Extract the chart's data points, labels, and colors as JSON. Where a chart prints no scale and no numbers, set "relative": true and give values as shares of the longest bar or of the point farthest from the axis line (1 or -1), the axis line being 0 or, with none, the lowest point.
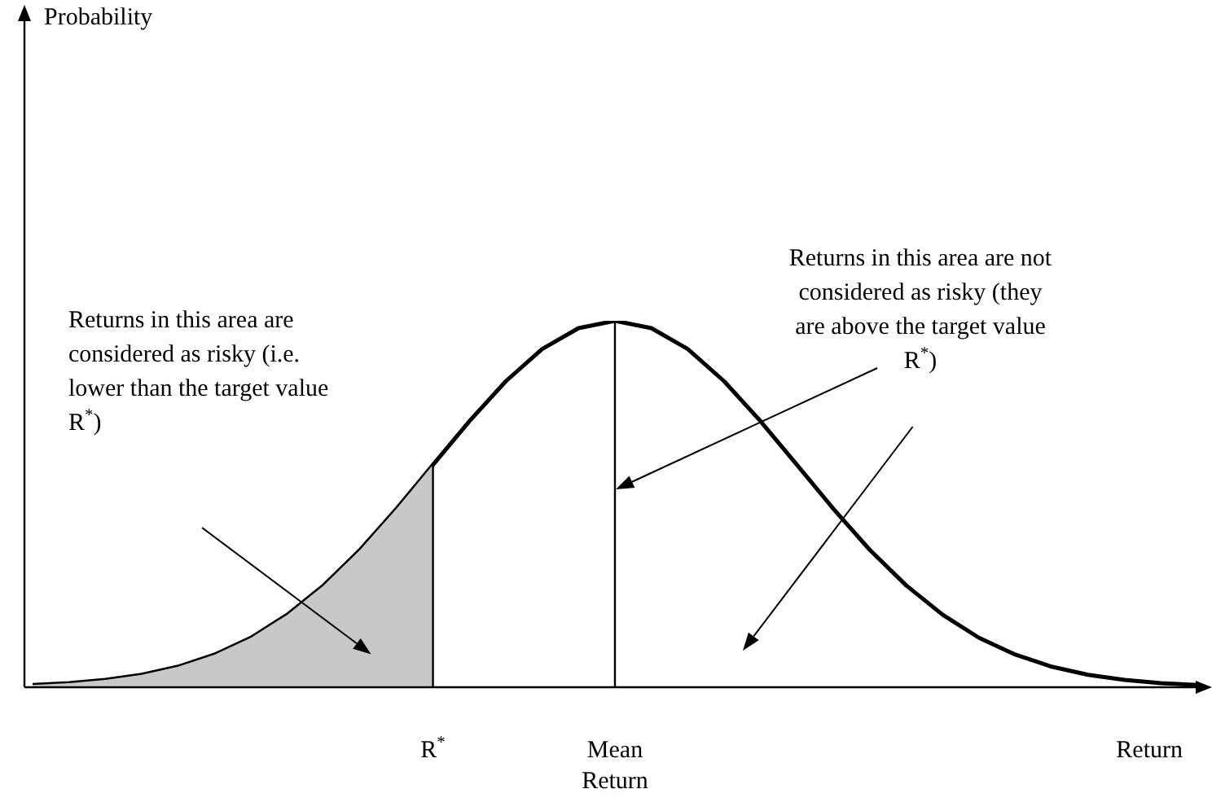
{
  "chart_data": {
    "type": "line",
    "relative": true,
    "xlabel": "Return",
    "legend": false,
    "marker": "none",
    "categories": [
      null,
      null,
      null,
      null,
      null,
      null,
      null,
      null,
      null,
      null,
      null,
      "R$^{*}$",
      null,
      null,
      null,
      null,
      "Mean Return",
      null,
      null,
      null,
      null,
      null,
      null,
      null,
      null,
      null,
      null,
      null,
      null,
      null,
      null,
      null,
      null
    ],
    "series": [
      {
        "color": "#000000",
        "values": [
          0.006,
          0.011,
          0.02,
          0.034,
          0.056,
          0.089,
          0.135,
          0.198,
          0.278,
          0.375,
          0.487,
          0.607,
          0.726,
          0.835,
          0.923,
          0.98,
          1,
          0.98,
          0.923,
          0.835,
          0.726,
          0.607,
          0.487,
          0.375,
          0.278,
          0.198,
          0.135,
          0.089,
          0.056,
          0.034,
          0.02,
          0.011,
          0.006
        ]
      },
      {
        "type": "area",
        "color": "#c8c8c8",
        "values": [
          0.006,
          0.011,
          0.02,
          0.034,
          0.056,
          0.089,
          0.135,
          0.198,
          0.278,
          0.375,
          0.487,
          0.607,
          null,
          null,
          null,
          null,
          null,
          null,
          null,
          null,
          null,
          null,
          null,
          null,
          null,
          null,
          null,
          null,
          null,
          null,
          null,
          null,
          null
        ]
      }
    ],
    "ref_lines": [
      {
        "axis": "x",
        "value": "R$^{*}$"
      },
      {
        "axis": "x",
        "value": "Mean Return"
      }
    ],
    "annotations": [
      "Probability",
      "Returns in this area are considered as risky (i.e. lower than the target value R$^{*}$)",
      "Returns in this area are not considered as risky (they are above the target value R$^{*}$)"
    ]
  }
}
